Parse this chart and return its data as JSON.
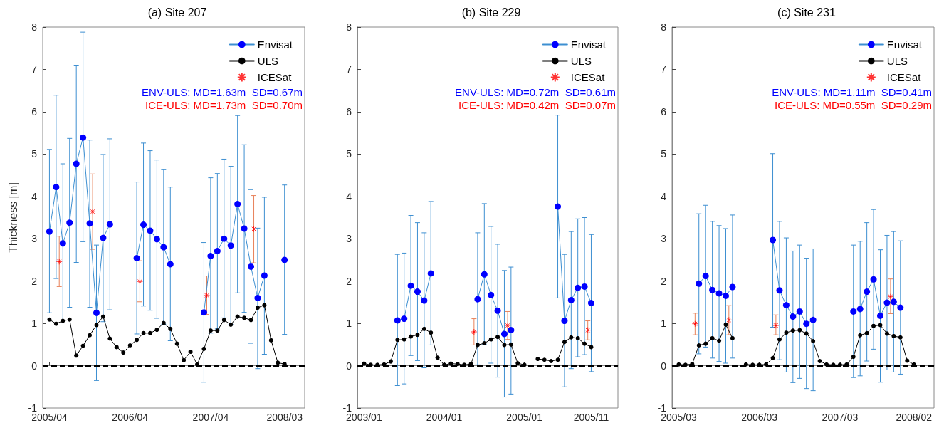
{
  "chart_data": [
    {
      "type": "line",
      "title": "(a) Site 207",
      "ylabel": "Thickness [m]",
      "xlim": [
        "2005-03",
        "2008-06"
      ],
      "ylim": [
        -1,
        8
      ],
      "yticks": [
        -1,
        0,
        1,
        2,
        3,
        4,
        5,
        6,
        7,
        8
      ],
      "xticks": [
        {
          "value": "2005-04",
          "label": "2005/04"
        },
        {
          "value": "2006-04",
          "label": "2006/04"
        },
        {
          "value": "2007-04",
          "label": "2007/04"
        },
        {
          "value": "2008-03",
          "label": "2008/03"
        }
      ],
      "grid": false,
      "legend": "top right",
      "annotations": [
        "ENV-ULS: MD=1.63m  SD=0.67m",
        "ICE-ULS: MD=1.73m  SD=0.70m"
      ],
      "ref_lines": [
        {
          "axis": "y",
          "value": 0,
          "color": "#000000",
          "line_style": "dashed"
        }
      ],
      "series": [
        {
          "name": "Envisat",
          "color": "#0000ff",
          "marker": "circle",
          "x": [
            "2005-04",
            "2005-05",
            "2005-06",
            "2005-07",
            "2005-08",
            "2005-09",
            "2005-10",
            "2005-11",
            "2005-12",
            "2006-01",
            "2006-03",
            "2006-05",
            "2006-06",
            "2006-07",
            "2006-08",
            "2006-09",
            "2006-10",
            "2006-12",
            "2007-03",
            "2007-04",
            "2007-05",
            "2007-06",
            "2007-07",
            "2007-08",
            "2007-09",
            "2007-10",
            "2007-11",
            "2007-12",
            "2008-01",
            "2008-03"
          ],
          "values": [
            3.17,
            4.22,
            2.89,
            3.38,
            4.77,
            5.39,
            3.36,
            1.25,
            3.02,
            3.34,
            null,
            2.54,
            3.33,
            3.19,
            2.99,
            2.8,
            2.4,
            null,
            1.26,
            2.59,
            2.71,
            3.0,
            2.84,
            3.82,
            3.24,
            2.34,
            1.6,
            2.13,
            null,
            2.5
          ],
          "errors": [
            [
              1.25,
              5.11
            ],
            [
              2.06,
              6.39
            ],
            [
              1.01,
              4.77
            ],
            [
              1.38,
              5.37
            ],
            [
              2.44,
              7.1
            ],
            [
              2.93,
              7.88
            ],
            [
              1.38,
              5.33
            ],
            [
              -0.35,
              2.85
            ],
            [
              1.04,
              4.99
            ],
            [
              1.32,
              5.36
            ],
            null,
            [
              0.75,
              4.34
            ],
            [
              1.41,
              5.26
            ],
            [
              1.31,
              5.08
            ],
            [
              1.12,
              4.86
            ],
            [
              0.98,
              4.63
            ],
            [
              0.59,
              4.22
            ],
            null,
            [
              -0.39,
              2.91
            ],
            [
              0.77,
              4.44
            ],
            [
              0.87,
              4.54
            ],
            [
              1.13,
              4.88
            ],
            [
              0.97,
              4.71
            ],
            [
              1.72,
              5.91
            ],
            [
              1.26,
              5.22
            ],
            [
              0.53,
              4.16
            ],
            [
              -0.07,
              3.25
            ],
            [
              0.27,
              3.98
            ],
            null,
            [
              0.74,
              4.27
            ]
          ]
        },
        {
          "name": "ULS",
          "color": "#000000",
          "marker": "circle",
          "x": [
            "2005-04",
            "2005-05",
            "2005-06",
            "2005-07",
            "2005-08",
            "2005-09",
            "2005-10",
            "2005-11",
            "2005-12",
            "2006-01",
            "2006-02",
            "2006-03",
            "2006-04",
            "2006-05",
            "2006-06",
            "2006-07",
            "2006-08",
            "2006-09",
            "2006-10",
            "2006-11",
            "2006-12",
            "2007-01",
            "2007-02",
            "2007-03",
            "2007-04",
            "2007-05",
            "2007-06",
            "2007-07",
            "2007-08",
            "2007-09",
            "2007-10",
            "2007-11",
            "2007-12",
            "2008-01",
            "2008-02",
            "2008-03"
          ],
          "values": [
            1.09,
            0.99,
            1.06,
            1.09,
            0.24,
            0.47,
            0.72,
            0.96,
            1.16,
            0.64,
            0.44,
            0.31,
            0.48,
            0.61,
            0.77,
            0.77,
            0.85,
            1.01,
            0.87,
            0.52,
            0.13,
            0.33,
            0.03,
            0.4,
            0.83,
            0.83,
            1.08,
            0.97,
            1.16,
            1.13,
            1.08,
            1.37,
            1.43,
            0.6,
            0.07,
            0.04
          ]
        },
        {
          "name": "ICESat",
          "type": "scatter",
          "color": "#ff0000",
          "marker": "cross",
          "x": [
            "2005-05-15",
            "2005-10-14",
            "2006-05-15",
            "2007-03-14",
            "2007-10-14"
          ],
          "values": [
            2.46,
            3.64,
            1.99,
            1.66,
            3.23
          ],
          "errors": [
            [
              1.87,
              3.06
            ],
            [
              2.75,
              4.53
            ],
            [
              1.51,
              2.48
            ],
            [
              1.21,
              2.12
            ],
            [
              2.43,
              4.02
            ]
          ]
        }
      ]
    },
    {
      "type": "line",
      "title": "(b) Site 229",
      "xlim": [
        "2002-12",
        "2006-03"
      ],
      "ylim": [
        -1,
        8
      ],
      "yticks": [
        -1,
        0,
        1,
        2,
        3,
        4,
        5,
        6,
        7,
        8
      ],
      "xticks": [
        {
          "value": "2003-01",
          "label": "2003/01"
        },
        {
          "value": "2004-01",
          "label": "2004/01"
        },
        {
          "value": "2005-01",
          "label": "2005/01"
        },
        {
          "value": "2005-11",
          "label": "2005/11"
        }
      ],
      "grid": false,
      "legend": "top right",
      "annotations": [
        "ENV-ULS: MD=0.72m  SD=0.61m",
        "ICE-ULS: MD=0.42m  SD=0.07m"
      ],
      "ref_lines": [
        {
          "axis": "y",
          "value": 0,
          "color": "#000000",
          "line_style": "dashed"
        }
      ],
      "series": [
        {
          "name": "Envisat",
          "color": "#0000ff",
          "marker": "circle",
          "x": [
            "2003-06",
            "2003-07",
            "2003-08",
            "2003-09",
            "2003-10",
            "2003-11",
            "2004-02",
            "2004-06",
            "2004-07",
            "2004-08",
            "2004-09",
            "2004-10",
            "2004-11",
            "2005-03",
            "2005-06",
            "2005-07",
            "2005-08",
            "2005-09",
            "2005-10",
            "2005-11"
          ],
          "values": [
            1.07,
            1.11,
            1.89,
            1.75,
            1.54,
            2.18,
            null,
            1.57,
            2.16,
            1.67,
            1.3,
            0.75,
            0.84,
            null,
            3.76,
            1.06,
            1.55,
            1.84,
            1.87,
            1.48
          ],
          "errors": [
            [
              -0.47,
              2.63
            ],
            [
              -0.43,
              2.66
            ],
            [
              0.24,
              3.55
            ],
            [
              0.12,
              3.38
            ],
            [
              -0.05,
              3.14
            ],
            [
              0.49,
              3.88
            ],
            null,
            [
              0.02,
              3.14
            ],
            [
              0.5,
              3.83
            ],
            [
              0.06,
              3.29
            ],
            [
              -0.27,
              2.87
            ],
            [
              -0.74,
              2.25
            ],
            [
              -0.67,
              2.33
            ],
            null,
            [
              1.6,
              5.92
            ],
            [
              -0.5,
              2.63
            ],
            [
              -0.07,
              3.17
            ],
            [
              0.21,
              3.47
            ],
            [
              0.26,
              3.5
            ],
            [
              -0.14,
              3.1
            ]
          ]
        },
        {
          "name": "ULS",
          "color": "#000000",
          "marker": "circle",
          "x": [
            "2003-01",
            "2003-02",
            "2003-03",
            "2003-04",
            "2003-05",
            "2003-06",
            "2003-07",
            "2003-08",
            "2003-09",
            "2003-10",
            "2003-11",
            "2003-12",
            "2004-01",
            "2004-02",
            "2004-03",
            "2004-04",
            "2004-05",
            "2004-06",
            "2004-07",
            "2004-08",
            "2004-09",
            "2004-10",
            "2004-11",
            "2004-12",
            "2005-01",
            "2005-02",
            "2005-03",
            "2005-04",
            "2005-05",
            "2005-06",
            "2005-07",
            "2005-08",
            "2005-09",
            "2005-10",
            "2005-11"
          ],
          "values": [
            0.05,
            0.02,
            0.02,
            0.03,
            0.1,
            0.61,
            0.62,
            0.69,
            0.73,
            0.87,
            0.78,
            0.19,
            0.02,
            0.05,
            0.04,
            0.02,
            0.04,
            0.49,
            0.53,
            0.62,
            0.68,
            0.49,
            0.5,
            0.06,
            0.02,
            null,
            0.16,
            0.14,
            0.11,
            0.14,
            0.56,
            0.67,
            0.65,
            0.52,
            0.44
          ]
        },
        {
          "name": "ICESat",
          "type": "scatter",
          "color": "#ff0000",
          "marker": "cross",
          "x": [
            "2004-05-15",
            "2004-10-16",
            "2005-10-16"
          ],
          "values": [
            0.8,
            0.95,
            0.84
          ],
          "errors": [
            [
              0.49,
              1.11
            ],
            [
              0.62,
              1.28
            ],
            [
              0.61,
              1.06
            ]
          ]
        }
      ]
    },
    {
      "type": "line",
      "title": "(c) Site 231",
      "xlim": [
        "2005-02",
        "2008-05"
      ],
      "ylim": [
        -1,
        8
      ],
      "yticks": [
        -1,
        0,
        1,
        2,
        3,
        4,
        5,
        6,
        7,
        8
      ],
      "xticks": [
        {
          "value": "2005-03",
          "label": "2005/03"
        },
        {
          "value": "2006-03",
          "label": "2006/03"
        },
        {
          "value": "2007-03",
          "label": "2007/03"
        },
        {
          "value": "2008-02",
          "label": "2008/02"
        }
      ],
      "grid": false,
      "legend": "top right",
      "annotations": [
        "ENV-ULS: MD=1.11m  SD=0.41m",
        "ICE-ULS: MD=0.55m  SD=0.29m"
      ],
      "ref_lines": [
        {
          "axis": "y",
          "value": 0,
          "color": "#000000",
          "line_style": "dashed"
        }
      ],
      "series": [
        {
          "name": "Envisat",
          "color": "#0000ff",
          "marker": "circle",
          "x": [
            "2005-06",
            "2005-07",
            "2005-08",
            "2005-09",
            "2005-10",
            "2005-11",
            "2006-02",
            "2006-05",
            "2006-06",
            "2006-07",
            "2006-08",
            "2006-09",
            "2006-10",
            "2006-11",
            "2007-02",
            "2007-05",
            "2007-06",
            "2007-07",
            "2007-08",
            "2007-09",
            "2007-10",
            "2007-11",
            "2007-12"
          ],
          "values": [
            1.94,
            2.12,
            1.79,
            1.71,
            1.65,
            1.86,
            null,
            2.97,
            1.78,
            1.43,
            1.16,
            1.28,
            0.99,
            1.08,
            null,
            1.28,
            1.34,
            1.75,
            2.04,
            1.18,
            1.49,
            1.51,
            1.37
          ],
          "errors": [
            [
              0.28,
              3.59
            ],
            [
              0.44,
              3.79
            ],
            [
              0.18,
              3.41
            ],
            [
              0.1,
              3.31
            ],
            [
              0.06,
              3.24
            ],
            [
              0.18,
              3.56
            ],
            null,
            [
              0.91,
              5.01
            ],
            [
              0.14,
              3.41
            ],
            [
              -0.15,
              3.02
            ],
            [
              -0.4,
              2.71
            ],
            [
              -0.3,
              2.85
            ],
            [
              -0.54,
              2.54
            ],
            [
              -0.59,
              2.76
            ],
            null,
            [
              -0.28,
              2.85
            ],
            [
              -0.24,
              2.94
            ],
            [
              0.11,
              3.38
            ],
            [
              0.39,
              3.69
            ],
            [
              -0.39,
              2.74
            ],
            [
              -0.1,
              3.08
            ],
            [
              -0.15,
              3.17
            ],
            [
              -0.2,
              2.95
            ]
          ]
        },
        {
          "name": "ULS",
          "color": "#000000",
          "marker": "circle",
          "x": [
            "2005-03",
            "2005-04",
            "2005-05",
            "2005-06",
            "2005-07",
            "2005-08",
            "2005-09",
            "2005-10",
            "2005-11",
            "2005-12",
            "2006-01",
            "2006-02",
            "2006-03",
            "2006-04",
            "2006-05",
            "2006-06",
            "2006-07",
            "2006-08",
            "2006-09",
            "2006-10",
            "2006-11",
            "2006-12",
            "2007-01",
            "2007-02",
            "2007-03",
            "2007-04",
            "2007-05",
            "2007-06",
            "2007-07",
            "2007-08",
            "2007-09",
            "2007-10",
            "2007-11",
            "2007-12",
            "2008-01",
            "2008-02"
          ],
          "values": [
            0.03,
            0.02,
            0.04,
            0.48,
            0.52,
            0.65,
            0.59,
            0.97,
            0.65,
            null,
            0.03,
            0.02,
            0.02,
            0.03,
            0.18,
            0.62,
            0.78,
            0.83,
            0.84,
            0.76,
            0.58,
            0.11,
            0.03,
            0.02,
            0.02,
            0.03,
            0.21,
            0.72,
            0.77,
            0.94,
            0.96,
            0.76,
            0.7,
            0.67,
            0.12,
            0.03
          ]
        },
        {
          "name": "ICESat",
          "type": "scatter",
          "color": "#ff0000",
          "marker": "cross",
          "x": [
            "2005-05-14",
            "2005-10-15",
            "2006-05-15",
            "2007-10-17"
          ],
          "values": [
            0.99,
            1.08,
            0.95,
            1.63
          ],
          "errors": [
            [
              0.73,
              1.24
            ],
            [
              0.73,
              1.42
            ],
            [
              0.73,
              1.2
            ],
            [
              1.23,
              2.05
            ]
          ]
        }
      ]
    }
  ]
}
